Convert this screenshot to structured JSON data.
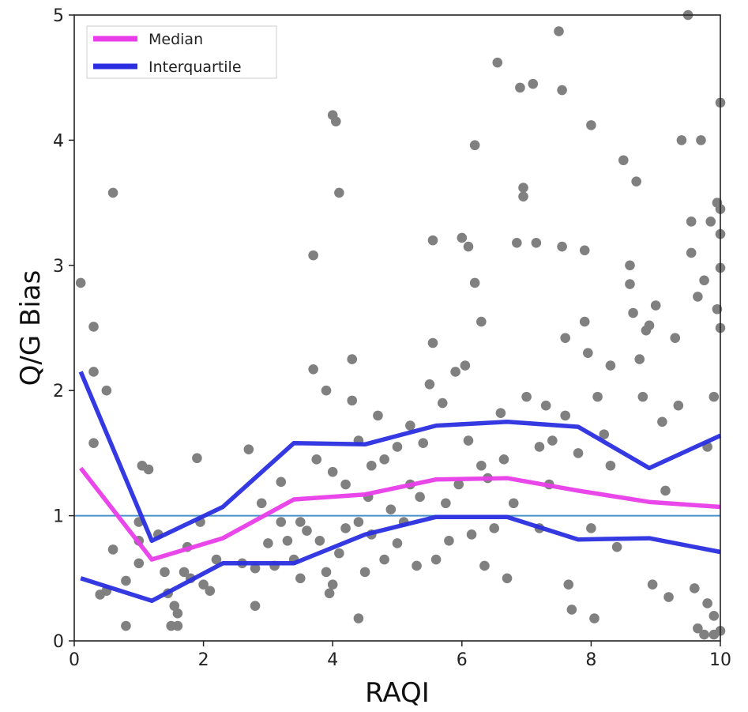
{
  "chart_data": {
    "type": "scatter",
    "xlabel": "RAQI",
    "ylabel": "Q/G Bias",
    "xlim": [
      0,
      10
    ],
    "ylim": [
      0,
      5
    ],
    "xticks": [
      0,
      2,
      4,
      6,
      8,
      10
    ],
    "yticks": [
      0,
      1,
      2,
      3,
      4,
      5
    ],
    "grid": false,
    "legend": {
      "position": "top-left",
      "entries": [
        "Median",
        "Interquartile"
      ]
    },
    "reference_line": {
      "y": 1,
      "color": "#4a90c8"
    },
    "series": [
      {
        "name": "Median",
        "type": "line",
        "color": "#e83de8",
        "x": [
          0.1,
          1.2,
          2.3,
          3.4,
          4.5,
          5.6,
          6.7,
          7.8,
          8.9,
          10.0
        ],
        "y": [
          1.38,
          0.65,
          0.82,
          1.13,
          1.17,
          1.29,
          1.3,
          1.2,
          1.11,
          1.07
        ]
      },
      {
        "name": "Interquartile",
        "type": "line",
        "color": "#2a2ee0",
        "x": [
          0.1,
          1.2,
          2.3,
          3.4,
          4.5,
          5.6,
          6.7,
          7.8,
          8.9,
          10.0
        ],
        "y": [
          2.15,
          0.8,
          1.07,
          1.58,
          1.57,
          1.72,
          1.75,
          1.71,
          1.38,
          1.64
        ]
      },
      {
        "name": "",
        "type": "line",
        "color": "#2a2ee0",
        "x": [
          0.1,
          1.2,
          2.3,
          3.4,
          4.5,
          5.6,
          6.7,
          7.8,
          8.9,
          10.0
        ],
        "y": [
          0.5,
          0.32,
          0.62,
          0.62,
          0.85,
          0.99,
          0.99,
          0.81,
          0.82,
          0.71
        ]
      }
    ],
    "scatter": {
      "color": "#808080",
      "points": [
        [
          0.1,
          2.86
        ],
        [
          0.3,
          2.51
        ],
        [
          0.3,
          2.15
        ],
        [
          0.5,
          2.0
        ],
        [
          0.6,
          3.58
        ],
        [
          0.3,
          1.58
        ],
        [
          0.6,
          0.73
        ],
        [
          0.4,
          0.37
        ],
        [
          0.5,
          0.4
        ],
        [
          0.8,
          0.48
        ],
        [
          0.8,
          0.12
        ],
        [
          1.0,
          0.95
        ],
        [
          1.0,
          0.62
        ],
        [
          1.0,
          0.8
        ],
        [
          1.05,
          1.4
        ],
        [
          1.15,
          1.37
        ],
        [
          1.3,
          0.85
        ],
        [
          1.4,
          0.55
        ],
        [
          1.45,
          0.38
        ],
        [
          1.5,
          0.12
        ],
        [
          1.6,
          0.12
        ],
        [
          1.55,
          0.28
        ],
        [
          1.6,
          0.22
        ],
        [
          1.7,
          0.55
        ],
        [
          1.75,
          0.75
        ],
        [
          1.8,
          0.5
        ],
        [
          1.9,
          1.46
        ],
        [
          1.95,
          0.95
        ],
        [
          2.0,
          0.45
        ],
        [
          2.1,
          0.4
        ],
        [
          2.2,
          0.65
        ],
        [
          2.6,
          0.62
        ],
        [
          2.7,
          1.53
        ],
        [
          2.8,
          0.28
        ],
        [
          2.8,
          0.58
        ],
        [
          2.9,
          1.1
        ],
        [
          3.0,
          0.78
        ],
        [
          3.1,
          0.6
        ],
        [
          3.2,
          1.27
        ],
        [
          3.2,
          0.95
        ],
        [
          3.3,
          0.8
        ],
        [
          3.4,
          0.65
        ],
        [
          3.5,
          0.95
        ],
        [
          3.6,
          0.88
        ],
        [
          3.5,
          0.5
        ],
        [
          3.7,
          3.08
        ],
        [
          3.7,
          2.17
        ],
        [
          3.75,
          1.45
        ],
        [
          3.8,
          0.8
        ],
        [
          3.9,
          2.0
        ],
        [
          3.9,
          0.55
        ],
        [
          4.0,
          4.2
        ],
        [
          4.05,
          4.15
        ],
        [
          4.1,
          3.58
        ],
        [
          4.0,
          1.35
        ],
        [
          4.0,
          0.45
        ],
        [
          3.95,
          0.38
        ],
        [
          4.1,
          0.7
        ],
        [
          4.2,
          1.25
        ],
        [
          4.2,
          0.9
        ],
        [
          4.3,
          2.25
        ],
        [
          4.3,
          1.92
        ],
        [
          4.4,
          1.6
        ],
        [
          4.4,
          0.95
        ],
        [
          4.4,
          0.18
        ],
        [
          4.5,
          0.55
        ],
        [
          4.55,
          1.15
        ],
        [
          4.6,
          1.4
        ],
        [
          4.6,
          0.85
        ],
        [
          4.7,
          1.8
        ],
        [
          4.8,
          1.45
        ],
        [
          4.8,
          0.65
        ],
        [
          4.9,
          1.05
        ],
        [
          5.0,
          0.78
        ],
        [
          5.0,
          1.55
        ],
        [
          5.1,
          0.95
        ],
        [
          5.2,
          1.72
        ],
        [
          5.2,
          1.25
        ],
        [
          5.3,
          0.6
        ],
        [
          5.35,
          1.15
        ],
        [
          5.4,
          1.58
        ],
        [
          5.5,
          2.05
        ],
        [
          5.55,
          3.2
        ],
        [
          5.55,
          2.38
        ],
        [
          5.6,
          0.65
        ],
        [
          5.7,
          1.9
        ],
        [
          5.75,
          1.1
        ],
        [
          5.8,
          0.8
        ],
        [
          5.9,
          2.15
        ],
        [
          5.95,
          1.25
        ],
        [
          6.0,
          3.22
        ],
        [
          6.05,
          2.2
        ],
        [
          6.1,
          3.15
        ],
        [
          6.1,
          1.6
        ],
        [
          6.15,
          0.85
        ],
        [
          6.2,
          2.86
        ],
        [
          6.2,
          3.96
        ],
        [
          6.3,
          2.55
        ],
        [
          6.3,
          1.4
        ],
        [
          6.35,
          0.6
        ],
        [
          6.4,
          1.3
        ],
        [
          6.5,
          0.9
        ],
        [
          6.55,
          4.62
        ],
        [
          6.6,
          1.82
        ],
        [
          6.65,
          1.45
        ],
        [
          6.7,
          0.5
        ],
        [
          6.8,
          1.1
        ],
        [
          6.9,
          4.42
        ],
        [
          6.85,
          3.18
        ],
        [
          6.95,
          3.62
        ],
        [
          6.95,
          3.55
        ],
        [
          7.0,
          1.95
        ],
        [
          7.1,
          4.45
        ],
        [
          7.15,
          3.18
        ],
        [
          7.2,
          1.55
        ],
        [
          7.2,
          0.9
        ],
        [
          7.3,
          1.88
        ],
        [
          7.35,
          1.25
        ],
        [
          7.4,
          1.6
        ],
        [
          7.5,
          4.87
        ],
        [
          7.55,
          4.4
        ],
        [
          7.55,
          3.15
        ],
        [
          7.6,
          2.42
        ],
        [
          7.6,
          1.8
        ],
        [
          7.65,
          0.45
        ],
        [
          7.7,
          0.25
        ],
        [
          7.8,
          1.5
        ],
        [
          7.9,
          3.12
        ],
        [
          7.9,
          2.55
        ],
        [
          7.95,
          2.3
        ],
        [
          8.0,
          4.12
        ],
        [
          8.0,
          0.9
        ],
        [
          8.05,
          0.18
        ],
        [
          8.1,
          1.95
        ],
        [
          8.2,
          1.65
        ],
        [
          8.3,
          2.2
        ],
        [
          8.3,
          1.4
        ],
        [
          8.4,
          0.75
        ],
        [
          8.5,
          3.84
        ],
        [
          8.6,
          3.0
        ],
        [
          8.6,
          2.85
        ],
        [
          8.65,
          2.62
        ],
        [
          8.7,
          3.67
        ],
        [
          8.75,
          2.25
        ],
        [
          8.8,
          1.95
        ],
        [
          8.85,
          2.48
        ],
        [
          8.9,
          2.52
        ],
        [
          8.95,
          0.45
        ],
        [
          9.0,
          2.68
        ],
        [
          9.1,
          1.75
        ],
        [
          9.15,
          1.2
        ],
        [
          9.2,
          0.35
        ],
        [
          9.3,
          2.42
        ],
        [
          9.35,
          1.88
        ],
        [
          9.4,
          4.0
        ],
        [
          9.5,
          5.0
        ],
        [
          9.55,
          3.35
        ],
        [
          9.55,
          3.1
        ],
        [
          9.6,
          0.42
        ],
        [
          9.65,
          2.75
        ],
        [
          9.7,
          4.0
        ],
        [
          9.75,
          2.88
        ],
        [
          9.8,
          0.3
        ],
        [
          9.8,
          1.55
        ],
        [
          9.85,
          3.35
        ],
        [
          9.9,
          1.95
        ],
        [
          9.9,
          0.2
        ],
        [
          9.95,
          3.5
        ],
        [
          9.95,
          2.65
        ],
        [
          10.0,
          4.3
        ],
        [
          10.0,
          3.45
        ],
        [
          10.0,
          3.25
        ],
        [
          10.0,
          2.98
        ],
        [
          10.0,
          2.5
        ],
        [
          10.0,
          0.08
        ],
        [
          9.75,
          0.05
        ],
        [
          9.65,
          0.1
        ],
        [
          9.9,
          0.05
        ]
      ]
    }
  }
}
